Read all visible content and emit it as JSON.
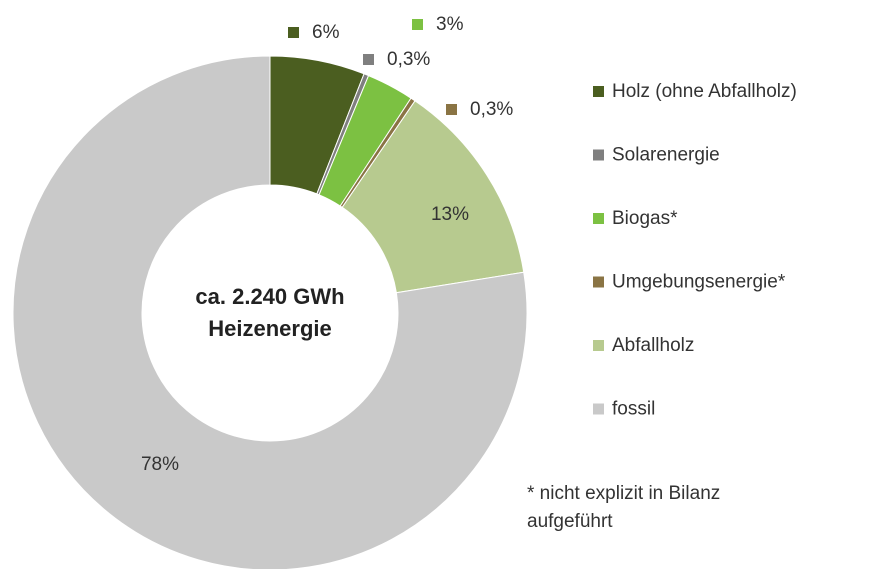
{
  "chart_data": {
    "type": "donut",
    "categories": [
      "Holz (ohne Abfallholz)",
      "Solarenergie",
      "Biogas*",
      "Umgebungsenergie*",
      "Abfallholz",
      "fossil"
    ],
    "values": [
      6,
      0.3,
      3,
      0.3,
      13,
      78
    ],
    "value_labels": [
      "6%",
      "0,3%",
      "3%",
      "0,3%",
      "13%",
      "78%"
    ],
    "colors": [
      "#4b5e20",
      "#7f7f7f",
      "#7cc142",
      "#8a7444",
      "#b7ca8f",
      "#c9c9c9"
    ],
    "center_text": [
      "ca. 2.240 GWh",
      "Heizenergie"
    ],
    "footnote": [
      "* nicht explizit in Bilanz",
      "aufgeführt"
    ],
    "legend": "right"
  }
}
